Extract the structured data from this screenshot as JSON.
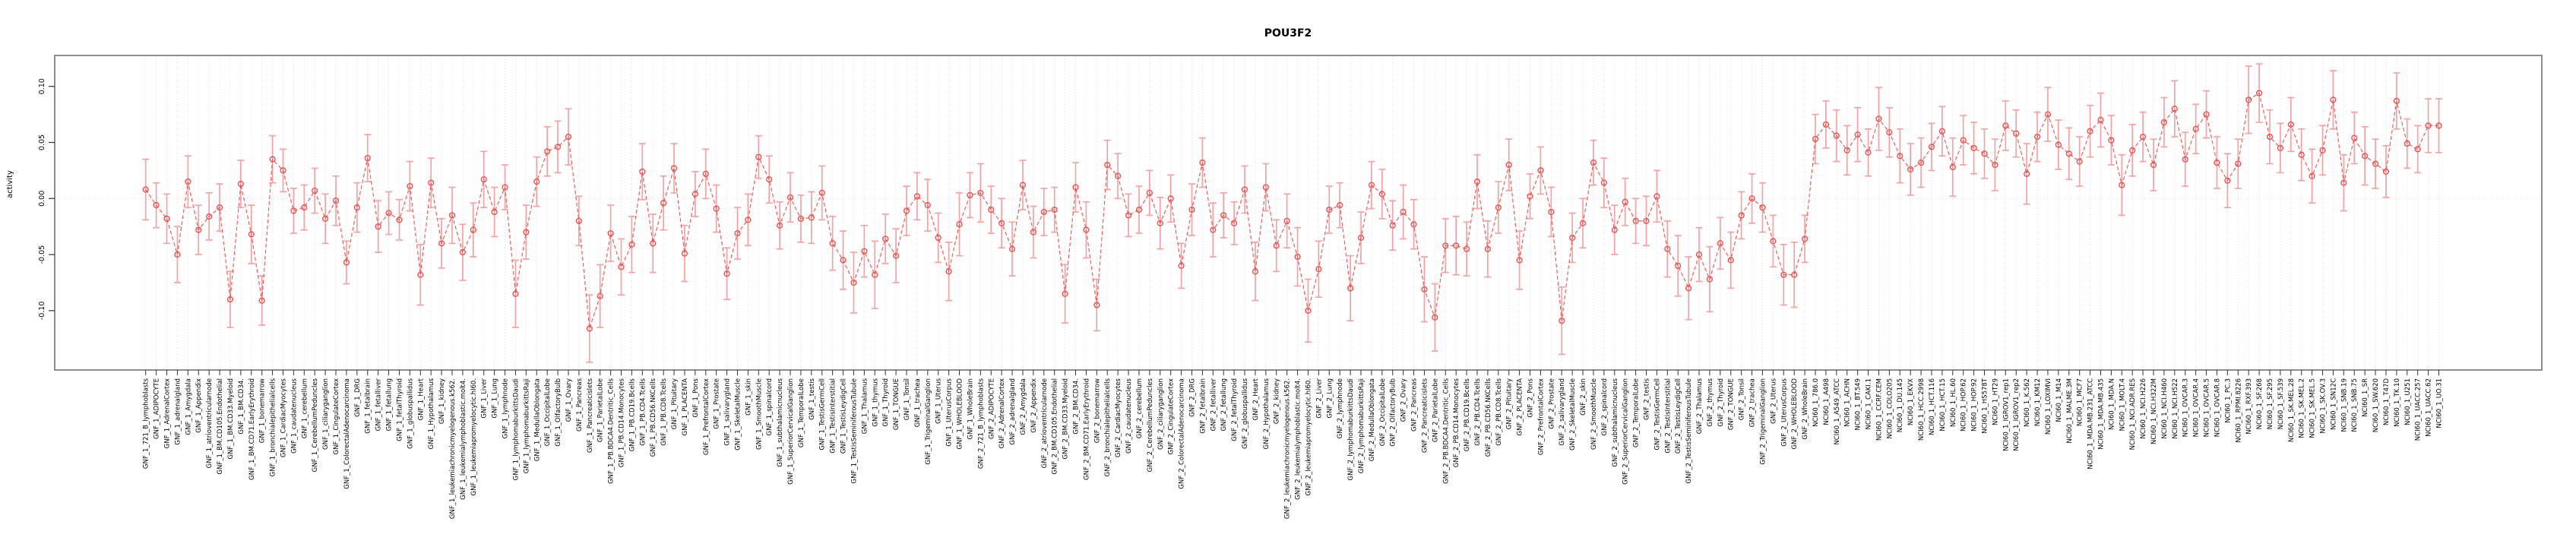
{
  "chart_data": {
    "type": "line",
    "title": "POU3F2",
    "ylabel": "activity",
    "xlabel": "",
    "legend": "none",
    "grid": "vertical-dotted-plus-zero-line",
    "ylim": [
      -0.153,
      0.127
    ],
    "ytick_values": [
      0.1,
      0.05,
      0.0,
      -0.05,
      -0.1
    ],
    "ytick_labels": [
      "0.10",
      "0.05",
      "0.00",
      "-0.05",
      "-0.10"
    ],
    "point_style": "open-circle-with-error-bars",
    "colors": {
      "point": "#ef4f4c",
      "line": "#f0514e",
      "errorbar": "#f6a2a2",
      "gridline": "#dcdcdc",
      "zero_line": "#d4d4d4",
      "box": "#8d8d8d",
      "text": "#000000"
    },
    "categories": [
      "GNF_1_721_B_lymphoblasts",
      "GNF_1_ADIPOCYTE",
      "GNF_1_AdrenalCortex",
      "GNF_1_adrenalgland",
      "GNF_1_Amygdala",
      "GNF_1_Appendix",
      "GNF_1_atrioventricularnode",
      "GNF_1_BM.CD105.Endothelial",
      "GNF_1_BM.CD33.Myeloid",
      "GNF_1_BM.CD34.",
      "GNF_1_BM.CD71.EarlyErythroid",
      "GNF_1_bonemarrow",
      "GNF_1_bronchialepithelialcells",
      "GNF_1_CardiacMyocytes",
      "GNF_1_caudatenucleus",
      "GNF_1_cerebellum",
      "GNF_1_CerebellumPeduncles",
      "GNF_1_ciliaryganglion",
      "GNF_1_CingulateCortex",
      "GNF_1_ColorectalAdenocarcinoma",
      "GNF_1_DRG",
      "GNF_1_fetalbrain",
      "GNF_1_fetalliver",
      "GNF_1_fetallung",
      "GNF_1_fetalThyroid",
      "GNF_1_globuspallidus",
      "GNF_1_Heart",
      "GNF_1_Hypothalamus",
      "GNF_1_kidney",
      "GNF_1_leukemiachronicmyelogenous.k562.",
      "GNF_1_leukemialymphoblastic.molt4.",
      "GNF_1_leukemiapromyelocytic.hl60.",
      "GNF_1_Liver",
      "GNF_1_Lung",
      "GNF_1_lymphnode",
      "GNF_1_lymphomaburkittsDaudi",
      "GNF_1_lymphomaburkittsRaji",
      "GNF_1_MedullaOblongata",
      "GNF_1_OccipitalLobe",
      "GNF_1_OlfactoryBulb",
      "GNF_1_Ovary",
      "GNF_1_Pancreas",
      "GNF_1_Pancreaticislets",
      "GNF_1_ParietalLobe",
      "GNF_1_PB.BDCA4.Dentritic_Cells",
      "GNF_1_PB.CD14.Monocytes",
      "GNF_1_PB.CD19.Bcells",
      "GNF_1_PB.CD4.Tcells",
      "GNF_1_PB.CD56.NKCells",
      "GNF_1_PB.CD8.Tcells",
      "GNF_1_Pituitary",
      "GNF_1_PLACENTA",
      "GNF_1_Pons",
      "GNF_1_PrefrontalCortex",
      "GNF_1_Prostate",
      "GNF_1_salivarygland",
      "GNF_1_SkeletalMuscle",
      "GNF_1_skin",
      "GNF_1_SmoothMuscle",
      "GNF_1_spinalcord",
      "GNF_1_subthalamicnucleus",
      "GNF_1_SuperiorCervicalGanglion",
      "GNF_1_TemporalLobe",
      "GNF_1_testis",
      "GNF_1_TestisGermCell",
      "GNF_1_TestisInterstitial",
      "GNF_1_TestisLeydigCell",
      "GNF_1_TestisSeminiferousTubule",
      "GNF_1_Thalamus",
      "GNF_1_thymus",
      "GNF_1_Thyroid",
      "GNF_1_TONGUE",
      "GNF_1_Tonsil",
      "GNF_1_trachea",
      "GNF_1_TrigeminalGanglion",
      "GNF_1_Uterus",
      "GNF_1_UterusCorpus",
      "GNF_1_WHOLEBLOOD",
      "GNF_1_WholeBrain",
      "GNF_2_721_B_lymphoblasts",
      "GNF_2_ADIPOCYTE",
      "GNF_2_AdrenalCortex",
      "GNF_2_adrenalgland",
      "GNF_2_Amygdala",
      "GNF_2_Appendix",
      "GNF_2_atrioventricularnode",
      "GNF_2_BM.CD105.Endothelial",
      "GNF_2_BM.CD33.Myeloid",
      "GNF_2_BM.CD34.",
      "GNF_2_BM.CD71.EarlyErythroid",
      "GNF_2_bonemarrow",
      "GNF_2_bronchialepithelialcells",
      "GNF_2_CardiacMyocytes",
      "GNF_2_caudatenucleus",
      "GNF_2_cerebellum",
      "GNF_2_CerebellumPeduncles",
      "GNF_2_ciliaryganglion",
      "GNF_2_CingulateCortex",
      "GNF_2_ColorectalAdenocarcinoma",
      "GNF_2_DRG",
      "GNF_2_fetalbrain",
      "GNF_2_fetalliver",
      "GNF_2_fetallung",
      "GNF_2_fetalThyroid",
      "GNF_2_globuspallidus",
      "GNF_2_Heart",
      "GNF_2_Hypothalamus",
      "GNF_2_kidney",
      "GNF_2_leukemiachronicmyelogenous.k562.",
      "GNF_2_leukemialymphoblastic.molt4.",
      "GNF_2_leukemiapromyelocytic.hl60.",
      "GNF_2_Liver",
      "GNF_2_Lung",
      "GNF_2_lymphnode",
      "GNF_2_lymphomaburkittsDaudi",
      "GNF_2_lymphomaburkittsRaji",
      "GNF_2_MedullaOblongata",
      "GNF_2_OccipitalLobe",
      "GNF_2_OlfactoryBulb",
      "GNF_2_Ovary",
      "GNF_2_Pancreas",
      "GNF_2_Pancreaticislets",
      "GNF_2_ParietalLobe",
      "GNF_2_PB.BDCA4.Dentritic_Cells",
      "GNF_2_PB.CD14.Monocytes",
      "GNF_2_PB.CD19.Bcells",
      "GNF_2_PB.CD4.Tcells",
      "GNF_2_PB.CD56.NKCells",
      "GNF_2_PB.CD8.Tcells",
      "GNF_2_Pituitary",
      "GNF_2_PLACENTA",
      "GNF_2_Pons",
      "GNF_2_PrefrontalCortex",
      "GNF_2_Prostate",
      "GNF_2_salivarygland",
      "GNF_2_SkeletalMuscle",
      "GNF_2_skin",
      "GNF_2_SmoothMuscle",
      "GNF_2_spinalcord",
      "GNF_2_subthalamicnucleus",
      "GNF_2_SuperiorCervicalGanglion",
      "GNF_2_TemporalLobe",
      "GNF_2_testis",
      "GNF_2_TestisGermCell",
      "GNF_2_TestisInterstitial",
      "GNF_2_TestisLeydigCell",
      "GNF_2_TestisSeminiferousTubule",
      "GNF_2_Thalamus",
      "GNF_2_thymus",
      "GNF_2_Thyroid",
      "GNF_2_TONGUE",
      "GNF_2_Tonsil",
      "GNF_2_trachea",
      "GNF_2_TrigeminalGanglion",
      "GNF_2_Uterus",
      "GNF_2_UterusCorpus",
      "GNF_2_WHOLEBLOOD",
      "GNF_2_WholeBrain",
      "NCI60_1_786.0",
      "NCI60_1_A498",
      "NCI60_1_A549_ATCC",
      "NCI60_1_ACHN",
      "NCI60_1_BT.549",
      "NCI60_1_CAKI.1",
      "NCI60_1_CCRF.CEM",
      "NCI60_1_COLO205",
      "NCI60_1_DU.145",
      "NCI60_1_EKVX",
      "NCI60_1_HCC.2998",
      "NCI60_1_HCT.116",
      "NCI60_1_HCT.15",
      "NCI60_1_HL.60",
      "NCI60_1_HOP.62",
      "NCI60_1_HOP.92",
      "NCI60_1_HS578T",
      "NCI60_1_HT29",
      "NCI60_1_IGROV1_rep1",
      "NCI60_1_IGROV1_rep2",
      "NCI60_1_K.562",
      "NCI60_1_KM12",
      "NCI60_1_LOXIMVI",
      "NCI60_1_M14",
      "NCI60_1_MALME.3M",
      "NCI60_1_MCF7",
      "NCI60_1_MDA.MB.231_ATCC",
      "NCI60_1_MDA.MB.435",
      "NCI60_1_MDA.N",
      "NCI60_1_MOLT.4",
      "NCI60_1_NCI.ADR.RES",
      "NCI60_1_NCI.H226",
      "NCI60_1_NCI.H322M",
      "NCI60_1_NCI.H460",
      "NCI60_1_NCI.H522",
      "NCI60_1_OVCAR.3",
      "NCI60_1_OVCAR.4",
      "NCI60_1_OVCAR.5",
      "NCI60_1_OVCAR.8",
      "NCI60_1_PC.3",
      "NCI60_1_RPMI.8226",
      "NCI60_1_RXF.393",
      "NCI60_1_SF.268",
      "NCI60_1_SF.295",
      "NCI60_1_SF.539",
      "NCI60_1_SK.MEL.28",
      "NCI60_1_SK.MEL.2",
      "NCI60_1_SK.MEL.5",
      "NCI60_1_SK.OV.3",
      "NCI60_1_SN12C",
      "NCI60_1_SNB.19",
      "NCI60_1_SNB.75",
      "NCI60_1_SR",
      "NCI60_1_SW.620",
      "NCI60_1_T47D",
      "NCI60_1_TK.10",
      "NCI60_1_U251",
      "NCI60_1_UACC.257",
      "NCI60_1_UACC.62",
      "NCI60_1_UO.31"
    ],
    "values": [
      0.008,
      -0.006,
      -0.018,
      -0.05,
      0.015,
      -0.028,
      -0.016,
      -0.008,
      -0.09,
      0.013,
      -0.032,
      -0.091,
      0.035,
      0.025,
      -0.011,
      -0.008,
      0.007,
      -0.018,
      -0.002,
      -0.057,
      -0.008,
      0.036,
      -0.025,
      -0.013,
      -0.019,
      0.011,
      -0.068,
      0.014,
      -0.04,
      -0.015,
      -0.048,
      -0.028,
      0.017,
      -0.012,
      0.01,
      -0.085,
      -0.03,
      0.015,
      0.042,
      0.046,
      0.055,
      -0.02,
      -0.116,
      -0.087,
      -0.031,
      -0.061,
      -0.041,
      0.024,
      -0.04,
      -0.004,
      0.027,
      -0.049,
      0.004,
      0.022,
      -0.009,
      -0.067,
      -0.031,
      -0.019,
      0.037,
      0.017,
      -0.024,
      0.001,
      -0.018,
      -0.017,
      0.005,
      -0.04,
      -0.055,
      -0.075,
      -0.047,
      -0.068,
      -0.036,
      -0.051,
      -0.011,
      0.002,
      -0.006,
      -0.035,
      -0.065,
      -0.023,
      0.003,
      0.005,
      -0.01,
      -0.022,
      -0.045,
      0.012,
      -0.03,
      -0.012,
      -0.01,
      -0.085,
      0.01,
      -0.028,
      -0.095,
      0.03,
      0.02,
      -0.015,
      -0.01,
      0.005,
      -0.022,
      0.0,
      -0.06,
      -0.01,
      0.032,
      -0.028,
      -0.015,
      -0.022,
      0.008,
      -0.065,
      0.01,
      -0.042,
      -0.02,
      -0.052,
      -0.1,
      -0.063,
      -0.01,
      -0.006,
      -0.08,
      -0.035,
      0.012,
      0.004,
      -0.024,
      -0.012,
      -0.023,
      -0.081,
      -0.106,
      -0.042,
      -0.042,
      -0.045,
      0.015,
      -0.045,
      -0.008,
      0.03,
      -0.055,
      0.002,
      0.025,
      -0.012,
      -0.109,
      -0.035,
      -0.022,
      0.032,
      0.014,
      -0.028,
      -0.003,
      -0.02,
      -0.02,
      0.002,
      -0.045,
      -0.06,
      -0.08,
      -0.05,
      -0.072,
      -0.04,
      -0.055,
      -0.015,
      0.0,
      -0.008,
      -0.038,
      -0.068,
      -0.068,
      -0.036,
      0.053,
      0.066,
      0.056,
      0.043,
      0.057,
      0.041,
      0.071,
      0.059,
      0.038,
      0.026,
      0.032,
      0.046,
      0.06,
      0.028,
      0.052,
      0.045,
      0.04,
      0.03,
      0.065,
      0.058,
      0.022,
      0.055,
      0.075,
      0.048,
      0.04,
      0.033,
      0.06,
      0.07,
      0.052,
      0.012,
      0.043,
      0.055,
      0.03,
      0.068,
      0.08,
      0.035,
      0.062,
      0.075,
      0.032,
      0.016,
      0.031,
      0.088,
      0.094,
      0.055,
      0.045,
      0.066,
      0.039,
      0.02,
      0.043,
      0.088,
      0.014,
      0.054,
      0.038,
      0.031,
      0.024,
      0.087,
      0.049,
      0.044,
      0.065,
      0.065
    ],
    "ci_halfwidth": [
      0.027,
      0.02,
      0.022,
      0.025,
      0.023,
      0.022,
      0.021,
      0.021,
      0.025,
      0.021,
      0.026,
      0.022,
      0.021,
      0.019,
      0.02,
      0.02,
      0.02,
      0.022,
      0.022,
      0.019,
      0.022,
      0.021,
      0.023,
      0.019,
      0.018,
      0.022,
      0.027,
      0.022,
      0.022,
      0.025,
      0.025,
      0.024,
      0.025,
      0.022,
      0.02,
      0.03,
      0.024,
      0.022,
      0.022,
      0.023,
      0.025,
      0.022,
      0.03,
      0.028,
      0.025,
      0.025,
      0.025,
      0.025,
      0.026,
      0.024,
      0.022,
      0.025,
      0.02,
      0.022,
      0.021,
      0.023,
      0.023,
      0.023,
      0.019,
      0.021,
      0.021,
      0.022,
      0.021,
      0.023,
      0.024,
      0.024,
      0.026,
      0.027,
      0.023,
      0.03,
      0.022,
      0.024,
      0.022,
      0.021,
      0.023,
      0.022,
      0.026,
      0.028,
      0.02,
      0.026,
      0.021,
      0.022,
      0.024,
      0.022,
      0.023,
      0.021,
      0.02,
      0.026,
      0.022,
      0.025,
      0.023,
      0.022,
      0.02,
      0.019,
      0.021,
      0.02,
      0.023,
      0.021,
      0.02,
      0.023,
      0.022,
      0.024,
      0.02,
      0.019,
      0.021,
      0.026,
      0.021,
      0.023,
      0.024,
      0.026,
      0.028,
      0.025,
      0.021,
      0.02,
      0.029,
      0.023,
      0.021,
      0.022,
      0.022,
      0.024,
      0.022,
      0.029,
      0.03,
      0.024,
      0.026,
      0.024,
      0.024,
      0.025,
      0.023,
      0.023,
      0.026,
      0.02,
      0.021,
      0.022,
      0.03,
      0.022,
      0.022,
      0.02,
      0.022,
      0.022,
      0.021,
      0.02,
      0.022,
      0.023,
      0.025,
      0.027,
      0.028,
      0.024,
      0.029,
      0.023,
      0.025,
      0.021,
      0.022,
      0.022,
      0.023,
      0.027,
      0.029,
      0.021,
      0.022,
      0.021,
      0.023,
      0.022,
      0.024,
      0.021,
      0.028,
      0.022,
      0.024,
      0.023,
      0.022,
      0.021,
      0.022,
      0.026,
      0.022,
      0.023,
      0.022,
      0.023,
      0.022,
      0.021,
      0.027,
      0.022,
      0.024,
      0.022,
      0.023,
      0.022,
      0.023,
      0.024,
      0.022,
      0.027,
      0.023,
      0.022,
      0.023,
      0.022,
      0.025,
      0.024,
      0.022,
      0.021,
      0.023,
      0.024,
      0.022,
      0.03,
      0.026,
      0.024,
      0.022,
      0.024,
      0.023,
      0.024,
      0.022,
      0.026,
      0.025,
      0.023,
      0.026,
      0.022,
      0.023,
      0.025,
      0.022,
      0.021,
      0.024,
      0.024
    ]
  }
}
